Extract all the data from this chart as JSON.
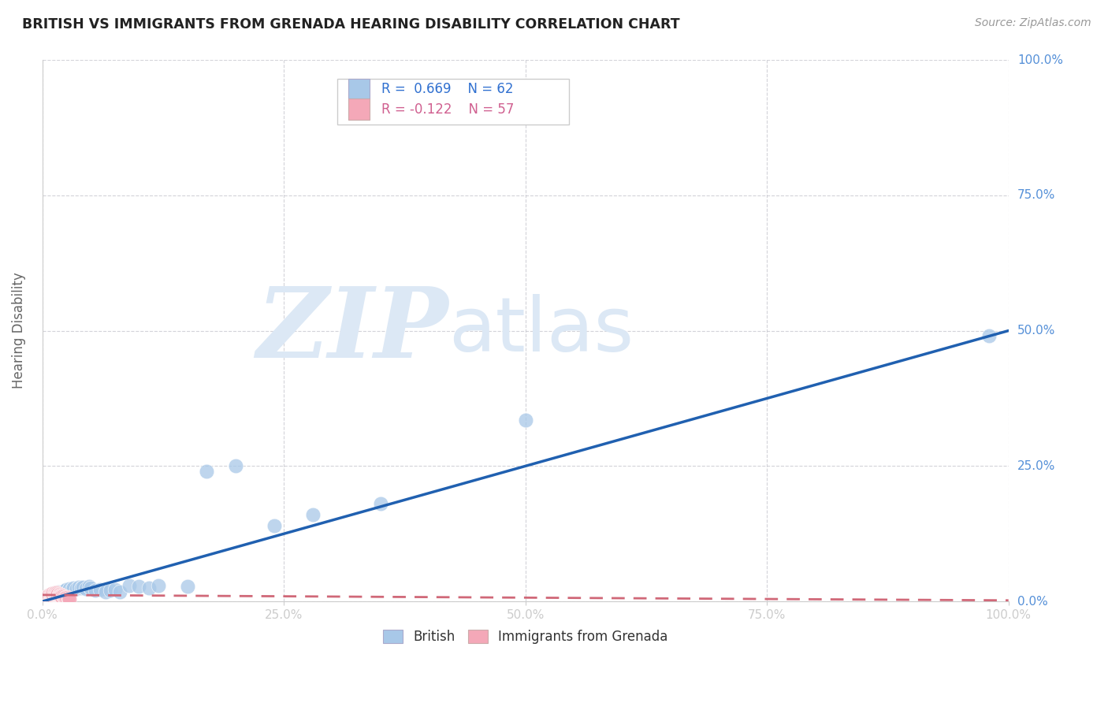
{
  "title": "BRITISH VS IMMIGRANTS FROM GRENADA HEARING DISABILITY CORRELATION CHART",
  "source_text": "Source: ZipAtlas.com",
  "ylabel": "Hearing Disability",
  "xlim": [
    0,
    1.0
  ],
  "ylim": [
    0,
    1.0
  ],
  "grid_color": "#c8c8d0",
  "background_color": "#ffffff",
  "british_color": "#a8c8e8",
  "grenada_color": "#f4a8b8",
  "british_line_color": "#2060b0",
  "grenada_line_color": "#d06878",
  "british_R": 0.669,
  "british_N": 62,
  "grenada_R": -0.122,
  "grenada_N": 57,
  "legend_R_color": "#3070d0",
  "legend_R2_color": "#d06090",
  "watermark_zip": "ZIP",
  "watermark_atlas": "atlas",
  "watermark_color": "#dce8f5",
  "british_scatter_x": [
    0.002,
    0.003,
    0.004,
    0.004,
    0.005,
    0.005,
    0.006,
    0.006,
    0.007,
    0.007,
    0.008,
    0.008,
    0.009,
    0.009,
    0.01,
    0.01,
    0.011,
    0.011,
    0.012,
    0.012,
    0.013,
    0.013,
    0.014,
    0.015,
    0.015,
    0.016,
    0.017,
    0.018,
    0.019,
    0.02,
    0.022,
    0.024,
    0.025,
    0.027,
    0.028,
    0.03,
    0.032,
    0.035,
    0.038,
    0.04,
    0.042,
    0.045,
    0.048,
    0.05,
    0.055,
    0.06,
    0.065,
    0.07,
    0.075,
    0.08,
    0.09,
    0.1,
    0.11,
    0.12,
    0.15,
    0.17,
    0.2,
    0.24,
    0.28,
    0.35,
    0.5,
    0.98
  ],
  "british_scatter_y": [
    0.002,
    0.003,
    0.004,
    0.005,
    0.004,
    0.006,
    0.005,
    0.007,
    0.006,
    0.008,
    0.007,
    0.009,
    0.008,
    0.01,
    0.009,
    0.011,
    0.01,
    0.012,
    0.011,
    0.013,
    0.012,
    0.014,
    0.015,
    0.014,
    0.016,
    0.015,
    0.017,
    0.016,
    0.018,
    0.017,
    0.019,
    0.02,
    0.022,
    0.021,
    0.023,
    0.022,
    0.025,
    0.024,
    0.026,
    0.025,
    0.027,
    0.024,
    0.028,
    0.025,
    0.02,
    0.022,
    0.018,
    0.02,
    0.022,
    0.018,
    0.03,
    0.028,
    0.025,
    0.03,
    0.028,
    0.24,
    0.25,
    0.14,
    0.16,
    0.18,
    0.335,
    0.49
  ],
  "grenada_scatter_x": [
    0.001,
    0.001,
    0.002,
    0.002,
    0.002,
    0.003,
    0.003,
    0.003,
    0.004,
    0.004,
    0.004,
    0.005,
    0.005,
    0.005,
    0.006,
    0.006,
    0.006,
    0.007,
    0.007,
    0.007,
    0.008,
    0.008,
    0.008,
    0.009,
    0.009,
    0.009,
    0.01,
    0.01,
    0.01,
    0.011,
    0.011,
    0.012,
    0.012,
    0.013,
    0.013,
    0.014,
    0.014,
    0.015,
    0.015,
    0.016,
    0.016,
    0.017,
    0.017,
    0.018,
    0.018,
    0.019,
    0.019,
    0.02,
    0.02,
    0.021,
    0.022,
    0.023,
    0.024,
    0.025,
    0.026,
    0.027,
    0.028
  ],
  "grenada_scatter_y": [
    0.002,
    0.004,
    0.003,
    0.005,
    0.007,
    0.004,
    0.006,
    0.008,
    0.005,
    0.007,
    0.009,
    0.006,
    0.008,
    0.01,
    0.007,
    0.009,
    0.011,
    0.008,
    0.01,
    0.012,
    0.009,
    0.011,
    0.013,
    0.01,
    0.012,
    0.014,
    0.011,
    0.013,
    0.015,
    0.012,
    0.014,
    0.013,
    0.015,
    0.014,
    0.016,
    0.015,
    0.013,
    0.014,
    0.016,
    0.015,
    0.013,
    0.014,
    0.012,
    0.013,
    0.011,
    0.012,
    0.01,
    0.011,
    0.009,
    0.01,
    0.009,
    0.008,
    0.007,
    0.008,
    0.007,
    0.006,
    0.005
  ]
}
